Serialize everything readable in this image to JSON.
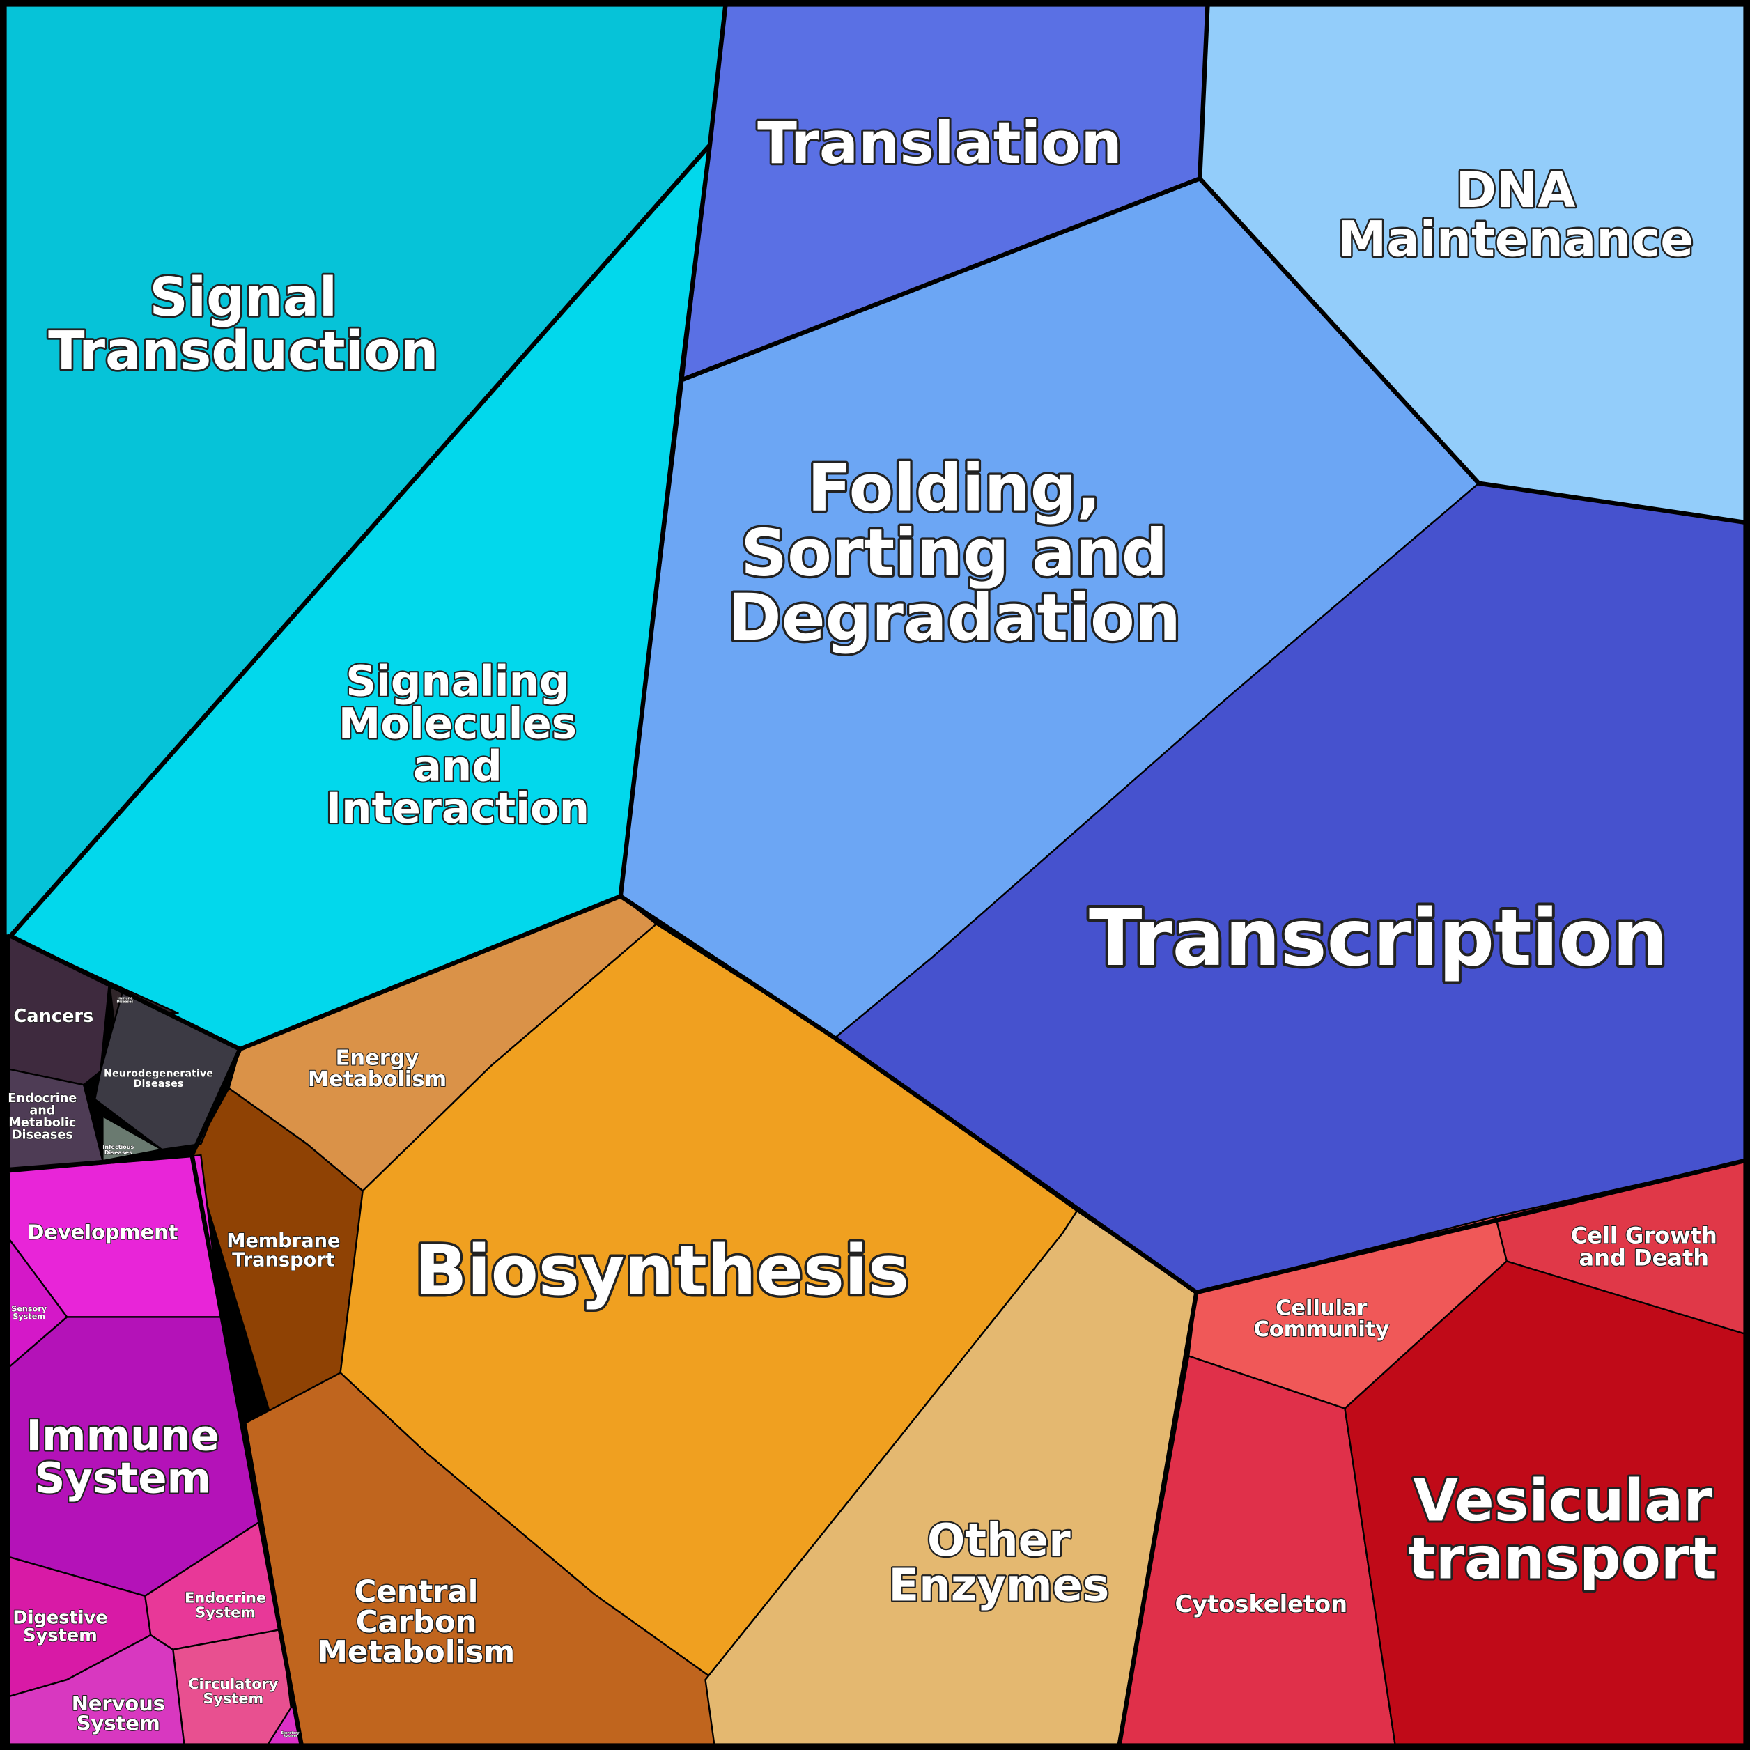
{
  "regions": {
    "signal_transduction": {
      "label": [
        "Signal",
        "Transduction"
      ],
      "color": "#06c3d8"
    },
    "signaling_molecules": {
      "label": [
        "Signaling",
        "Molecules",
        "and",
        "Interaction"
      ],
      "color": "#02d8ec"
    },
    "translation": {
      "label": [
        "Translation"
      ],
      "color": "#5a70e4"
    },
    "dna_maintenance": {
      "label": [
        "DNA",
        "Maintenance"
      ],
      "color": "#93cdfa"
    },
    "folding": {
      "label": [
        "Folding,",
        "Sorting and",
        "Degradation"
      ],
      "color": "#6ca6f4"
    },
    "transcription": {
      "label": [
        "Transcription"
      ],
      "color": "#4652ce"
    },
    "energy_metabolism": {
      "label": [
        "Energy",
        "Metabolism"
      ],
      "color": "#da9248"
    },
    "membrane_transport": {
      "label": [
        "Membrane",
        "Transport"
      ],
      "color": "#8f4204"
    },
    "biosynthesis": {
      "label": [
        "Biosynthesis"
      ],
      "color": "#f0a020"
    },
    "central_carbon": {
      "label": [
        "Central",
        "Carbon",
        "Metabolism"
      ],
      "color": "#c0651e"
    },
    "other_enzymes": {
      "label": [
        "Other",
        "Enzymes"
      ],
      "color": "#e4b870"
    },
    "cancers": {
      "label": [
        "Cancers"
      ],
      "color": "#3e2a3e"
    },
    "immune_diseases": {
      "label": [
        "Immune",
        "Diseases"
      ],
      "color": "#30262a"
    },
    "neurodegenerative": {
      "label": [
        "Neurodegenerative",
        "Diseases"
      ],
      "color": "#3c3a44"
    },
    "endocrine_metabolic": {
      "label": [
        "Endocrine",
        "and",
        "Metabolic",
        "Diseases"
      ],
      "color": "#4e3c55"
    },
    "infectious": {
      "label": [
        "Infectious",
        "Diseases"
      ],
      "color": "#6a7a70"
    },
    "development": {
      "label": [
        "Development"
      ],
      "color": "#e825d8"
    },
    "sensory": {
      "label": [
        "Sensory",
        "System"
      ],
      "color": "#d418c8"
    },
    "immune_system": {
      "label": [
        "Immune",
        "System"
      ],
      "color": "#b412b8"
    },
    "digestive": {
      "label": [
        "Digestive",
        "System"
      ],
      "color": "#d81aa6"
    },
    "endocrine_system": {
      "label": [
        "Endocrine",
        "System"
      ],
      "color": "#e83898"
    },
    "circulatory": {
      "label": [
        "Circulatory",
        "System"
      ],
      "color": "#e85090"
    },
    "nervous": {
      "label": [
        "Nervous",
        "System"
      ],
      "color": "#d838c0"
    },
    "excretory": {
      "label": [
        "Excretory",
        "System"
      ],
      "color": "#dc30c8"
    },
    "cell_growth": {
      "label": [
        "Cell Growth",
        "and Death"
      ],
      "color": "#e03848"
    },
    "cellular_community": {
      "label": [
        "Cellular",
        "Community"
      ],
      "color": "#f05858"
    },
    "cytoskeleton": {
      "label": [
        "Cytoskeleton"
      ],
      "color": "#e0304a"
    },
    "vesicular": {
      "label": [
        "Vesicular",
        "transport"
      ],
      "color": "#c00a18"
    }
  }
}
